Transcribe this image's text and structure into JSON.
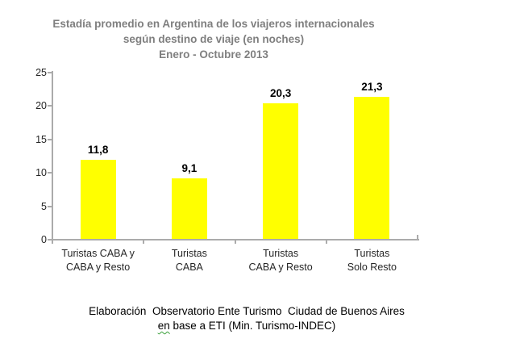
{
  "chart_data": {
    "type": "bar",
    "title": "Estadía promedio en Argentina de los viajeros internacionales según destino de viaje (en noches) Enero - Octubre 2013",
    "title_lines": [
      "Estadía promedio en Argentina de los viajeros internacionales",
      "según destino de viaje (en noches)",
      "Enero - Octubre 2013"
    ],
    "categories": [
      "Turistas CABA y CABA y Resto",
      "Turistas CABA",
      "Turistas CABA y Resto",
      "Turistas Solo Resto"
    ],
    "category_label_lines": [
      [
        "Turistas CABA y",
        "CABA y Resto"
      ],
      [
        "Turistas",
        "CABA"
      ],
      [
        "Turistas",
        "CABA y Resto"
      ],
      [
        "Turistas",
        "Solo Resto"
      ]
    ],
    "values": [
      11.8,
      9.1,
      20.3,
      21.3
    ],
    "value_labels": [
      "11,8",
      "9,1",
      "20,3",
      "21,3"
    ],
    "xlabel": "",
    "ylabel": "",
    "ylim": [
      0,
      25
    ],
    "yticks": [
      0,
      5,
      10,
      15,
      20,
      25
    ],
    "grid": false,
    "legend": null,
    "bar_color": "#ffff00",
    "axis_color": "#ababab",
    "title_color": "#7f7f7f",
    "tick_label_color": "#262626",
    "value_label_color": "#000000"
  },
  "footer": {
    "line1": "Elaboración  Observatorio Ente Turismo  Ciudad de Buenos Aires",
    "underlined_word": "en",
    "line2_rest": " base a ETI (Min. Turismo-INDEC)"
  }
}
